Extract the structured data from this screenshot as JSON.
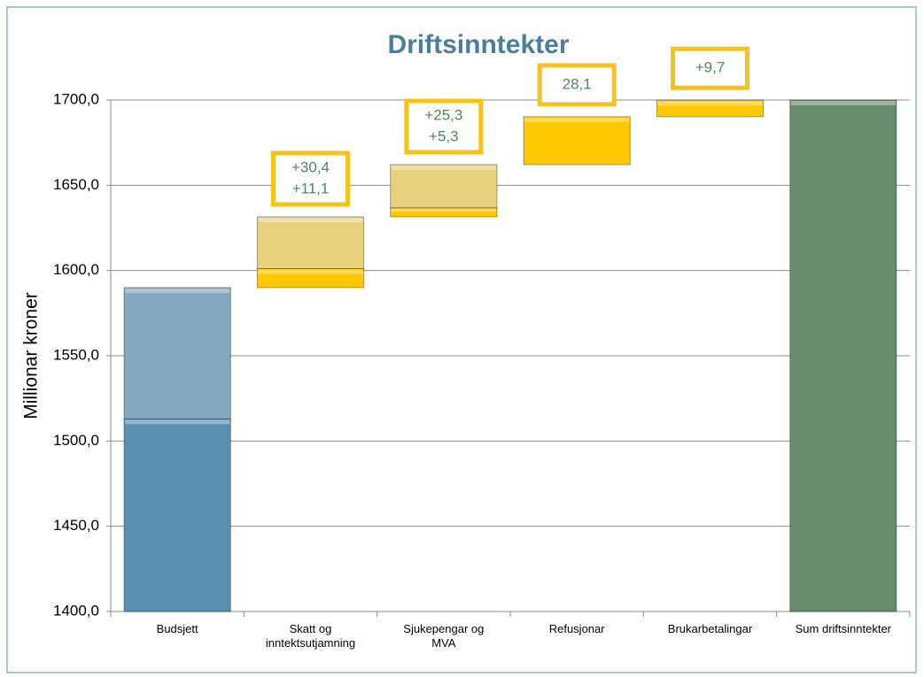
{
  "chart_data": {
    "type": "waterfall",
    "title": "Driftsinntekter",
    "y_label": "Millionar kroner",
    "categories": [
      "Budsjett",
      "Skatt og inntektsutjamning",
      "Sjukepengar og MVA",
      "Refusjonar",
      "Brukarbetalingar",
      "Sum driftsinntekter"
    ],
    "measure": [
      "absolute",
      "relative",
      "relative",
      "relative",
      "relative",
      "total"
    ],
    "segments": [
      [
        1513,
        77
      ],
      [
        11.1,
        30.4
      ],
      [
        5.3,
        25.3
      ],
      [
        28.1
      ],
      [
        9.7
      ],
      [
        1700
      ]
    ],
    "value_labels": [
      [
        null,
        null
      ],
      [
        "+11,1",
        "+30,4"
      ],
      [
        "+5,3",
        "+25,3"
      ],
      [
        "28,1"
      ],
      [
        "+9,7"
      ],
      [
        null
      ]
    ],
    "colors": [
      [
        "#5b90b1",
        "#84a9bf"
      ],
      [
        "#ffc800",
        "#e9d07c"
      ],
      [
        "#ffc800",
        "#e9d07c"
      ],
      [
        "#ffc800"
      ],
      [
        "#ffc800"
      ],
      [
        "#678c6e"
      ]
    ],
    "ylim": [
      1400,
      1700
    ],
    "yticks": [
      {
        "value": 1400,
        "label": "1400,0"
      },
      {
        "value": 1450,
        "label": "1450,0"
      },
      {
        "value": 1500,
        "label": "1500,0"
      },
      {
        "value": 1550,
        "label": "1550,0"
      },
      {
        "value": 1600,
        "label": "1600,0"
      },
      {
        "value": 1650,
        "label": "1650,0"
      },
      {
        "value": 1700,
        "label": "1700,0"
      }
    ],
    "grid": true
  }
}
